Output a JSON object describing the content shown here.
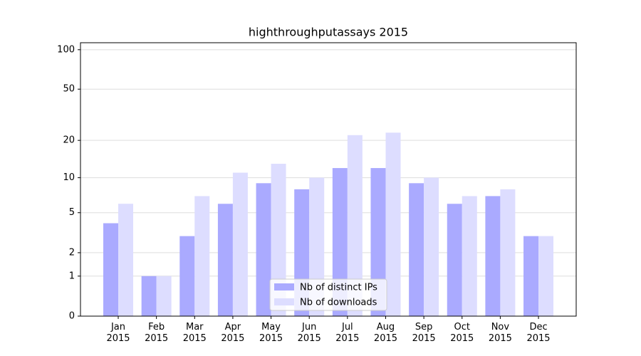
{
  "chart_data": {
    "type": "bar",
    "title": "highthroughputassays 2015",
    "categories": [
      "Jan\n2015",
      "Feb\n2015",
      "Mar\n2015",
      "Apr\n2015",
      "May\n2015",
      "Jun\n2015",
      "Jul\n2015",
      "Aug\n2015",
      "Sep\n2015",
      "Oct\n2015",
      "Nov\n2015",
      "Dec\n2015"
    ],
    "series": [
      {
        "name": "Nb of distinct IPs",
        "color": "#aaaaff",
        "values": [
          4,
          1,
          3,
          6,
          9,
          8,
          12,
          12,
          9,
          6,
          7,
          3
        ]
      },
      {
        "name": "Nb of downloads",
        "color": "#ddddff",
        "values": [
          6,
          1,
          7,
          11,
          13,
          10,
          22,
          23,
          10,
          7,
          8,
          3
        ]
      }
    ],
    "yscale": "log1p",
    "ylim": [
      0,
      113
    ],
    "yticks": [
      0,
      1,
      2,
      5,
      10,
      20,
      50,
      100
    ],
    "grid": true,
    "legend": "lower center"
  }
}
